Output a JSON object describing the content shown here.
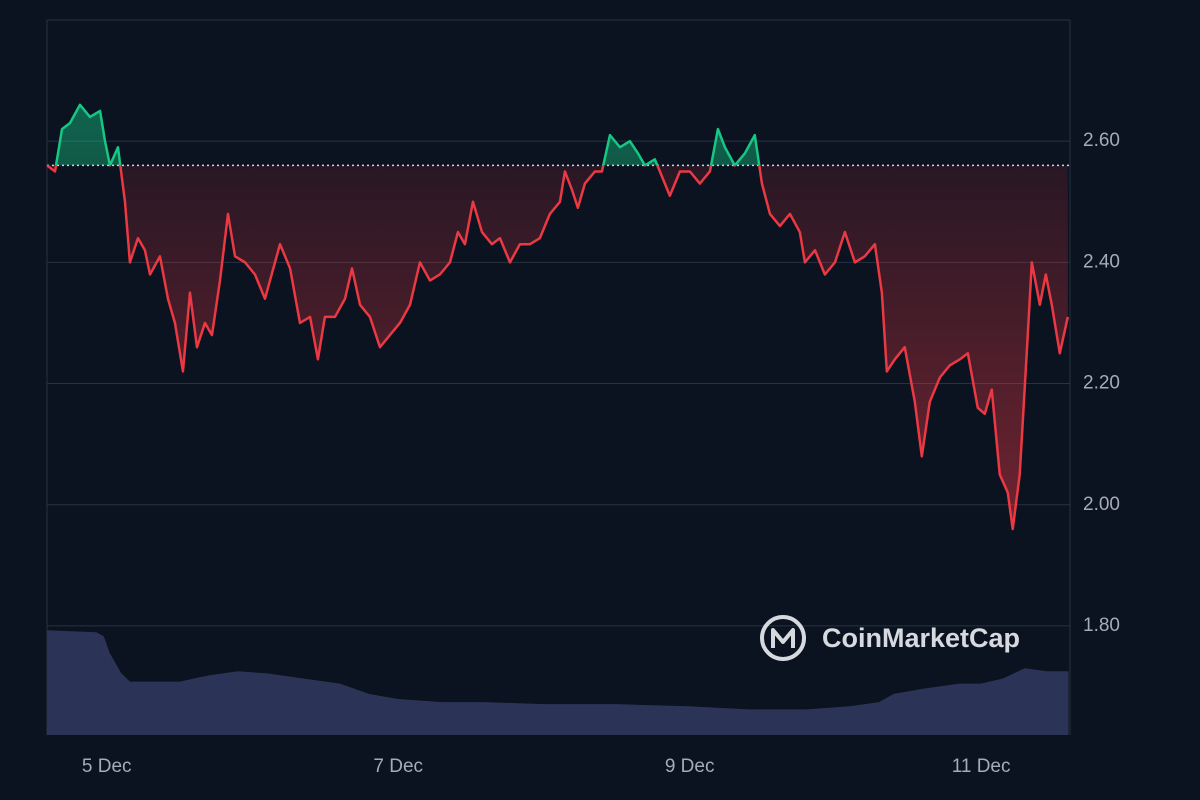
{
  "chart_data": {
    "type": "line",
    "watermark": "CoinMarketCap",
    "baseline": 2.56,
    "x": [
      4.59,
      4.645,
      4.693,
      4.748,
      4.816,
      4.885,
      4.954,
      4.988,
      5.022,
      5.077,
      5.125,
      5.159,
      5.214,
      5.262,
      5.297,
      5.365,
      5.42,
      5.468,
      5.523,
      5.571,
      5.619,
      5.674,
      5.722,
      5.777,
      5.832,
      5.88,
      5.949,
      6.017,
      6.086,
      6.12,
      6.189,
      6.258,
      6.326,
      6.395,
      6.449,
      6.497,
      6.566,
      6.635,
      6.683,
      6.738,
      6.806,
      6.875,
      6.943,
      7.012,
      7.081,
      7.149,
      7.218,
      7.286,
      7.355,
      7.41,
      7.458,
      7.513,
      7.575,
      7.643,
      7.698,
      7.767,
      7.835,
      7.904,
      7.972,
      8.041,
      8.11,
      8.144,
      8.192,
      8.233,
      8.281,
      8.35,
      8.398,
      8.453,
      8.522,
      8.59,
      8.645,
      8.693,
      8.761,
      8.796,
      8.864,
      8.933,
      9.002,
      9.07,
      9.139,
      9.194,
      9.242,
      9.31,
      9.379,
      9.447,
      9.496,
      9.551,
      9.619,
      9.688,
      9.756,
      9.791,
      9.86,
      9.928,
      9.997,
      10.065,
      10.134,
      10.202,
      10.271,
      10.319,
      10.353,
      10.408,
      10.476,
      10.545,
      10.593,
      10.648,
      10.717,
      10.785,
      10.854,
      10.909,
      10.977,
      11.025,
      11.073,
      11.128,
      11.183,
      11.217,
      11.265,
      11.313,
      11.348,
      11.403,
      11.444,
      11.485,
      11.54,
      11.595
    ],
    "series": [
      {
        "up_color": "#16c784",
        "down_color": "#ea3943",
        "values": [
          2.56,
          2.55,
          2.62,
          2.63,
          2.66,
          2.64,
          2.65,
          2.6,
          2.56,
          2.59,
          2.5,
          2.4,
          2.44,
          2.42,
          2.38,
          2.41,
          2.34,
          2.3,
          2.22,
          2.35,
          2.26,
          2.3,
          2.28,
          2.37,
          2.48,
          2.41,
          2.4,
          2.38,
          2.34,
          2.37,
          2.43,
          2.39,
          2.3,
          2.31,
          2.24,
          2.31,
          2.31,
          2.34,
          2.39,
          2.33,
          2.31,
          2.26,
          2.28,
          2.3,
          2.33,
          2.4,
          2.37,
          2.38,
          2.4,
          2.45,
          2.43,
          2.5,
          2.45,
          2.43,
          2.44,
          2.4,
          2.43,
          2.43,
          2.44,
          2.48,
          2.5,
          2.55,
          2.52,
          2.49,
          2.53,
          2.55,
          2.55,
          2.61,
          2.59,
          2.6,
          2.58,
          2.56,
          2.57,
          2.55,
          2.51,
          2.55,
          2.55,
          2.53,
          2.55,
          2.62,
          2.59,
          2.56,
          2.58,
          2.61,
          2.53,
          2.48,
          2.46,
          2.48,
          2.45,
          2.4,
          2.42,
          2.38,
          2.4,
          2.45,
          2.4,
          2.41,
          2.43,
          2.35,
          2.22,
          2.24,
          2.26,
          2.17,
          2.08,
          2.17,
          2.21,
          2.23,
          2.24,
          2.25,
          2.16,
          2.15,
          2.19,
          2.05,
          2.02,
          1.96,
          2.05,
          2.25,
          2.4,
          2.33,
          2.38,
          2.33,
          2.25,
          2.31
        ]
      }
    ],
    "volume": {
      "color": "#2b3457",
      "x": [
        4.59,
        4.93,
        4.98,
        5.02,
        5.1,
        5.16,
        5.5,
        5.7,
        5.9,
        6.1,
        6.3,
        6.6,
        6.8,
        7.0,
        7.3,
        7.6,
        8.0,
        8.5,
        9.0,
        9.4,
        9.8,
        10.1,
        10.3,
        10.4,
        10.6,
        10.85,
        11.0,
        11.15,
        11.3,
        11.45,
        11.6
      ],
      "values": [
        102,
        100,
        96,
        80,
        60,
        52,
        52,
        58,
        62,
        60,
        56,
        50,
        40,
        35,
        32,
        32,
        30,
        30,
        28,
        25,
        25,
        28,
        32,
        40,
        45,
        50,
        50,
        55,
        65,
        62,
        62
      ],
      "ylim": [
        0,
        110
      ]
    },
    "xlim": [
      4.59,
      11.61
    ],
    "xticks": [
      {
        "value": 5,
        "label": "5 Dec"
      },
      {
        "value": 7,
        "label": "7 Dec"
      },
      {
        "value": 9,
        "label": "9 Dec"
      },
      {
        "value": 11,
        "label": "11 Dec"
      }
    ],
    "ylim": [
      1.62,
      2.8
    ],
    "yticks": [
      {
        "value": 1.8,
        "label": "1.80"
      },
      {
        "value": 2.0,
        "label": "2.00"
      },
      {
        "value": 2.2,
        "label": "2.20"
      },
      {
        "value": 2.4,
        "label": "2.40"
      },
      {
        "value": 2.6,
        "label": "2.60"
      }
    ],
    "grid": true
  }
}
